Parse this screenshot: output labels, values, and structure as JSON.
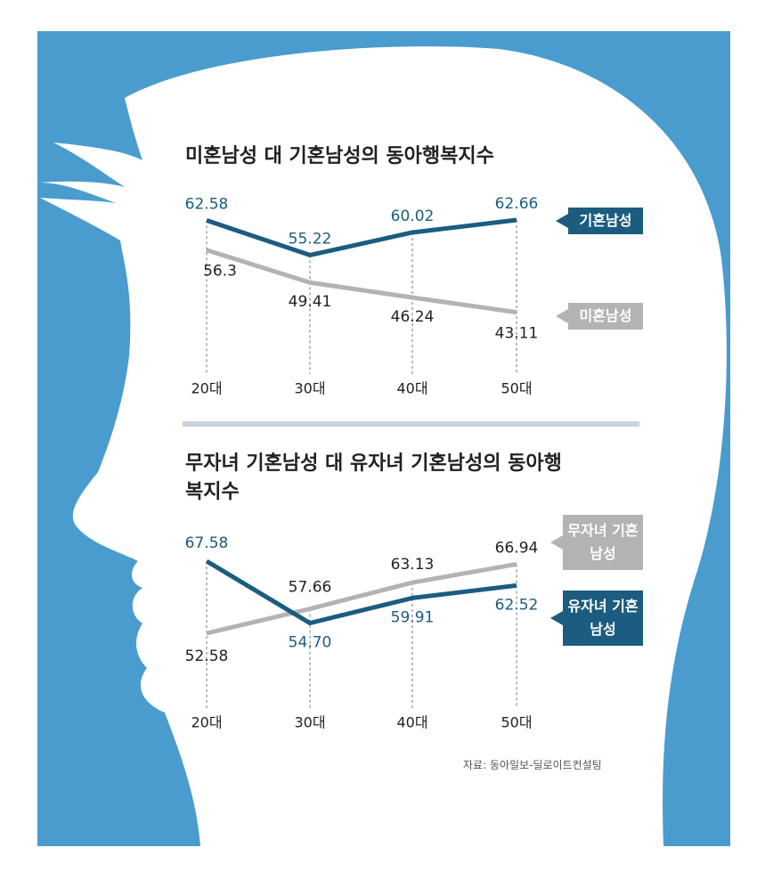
{
  "chart_data": [
    {
      "type": "line",
      "title": "미혼남성 대 기혼남성의 동아행복지수",
      "categories": [
        "20대",
        "30대",
        "40대",
        "50대"
      ],
      "series": [
        {
          "name": "기혼남성",
          "color": "#1b5c80",
          "values": [
            62.58,
            55.22,
            60.02,
            62.66
          ]
        },
        {
          "name": "미혼남성",
          "color": "#b3b3b3",
          "values": [
            56.3,
            49.41,
            46.24,
            43.11
          ]
        }
      ]
    },
    {
      "type": "line",
      "title": "무자녀 기혼남성 대 유자녀 기혼남성의 동아행복지수",
      "categories": [
        "20대",
        "30대",
        "40대",
        "50대"
      ],
      "series": [
        {
          "name": "무자녀 기혼남성",
          "color": "#b3b3b3",
          "values": [
            52.58,
            57.66,
            63.13,
            66.94
          ]
        },
        {
          "name": "유자녀 기혼남성",
          "color": "#1b5c80",
          "values": [
            67.58,
            54.7,
            59.91,
            62.52
          ],
          "value_labels": [
            "67.58",
            "54.70",
            "59.91",
            "62.52"
          ]
        }
      ]
    }
  ],
  "source": "자료: 동아일보-딜로이트컨설팅"
}
